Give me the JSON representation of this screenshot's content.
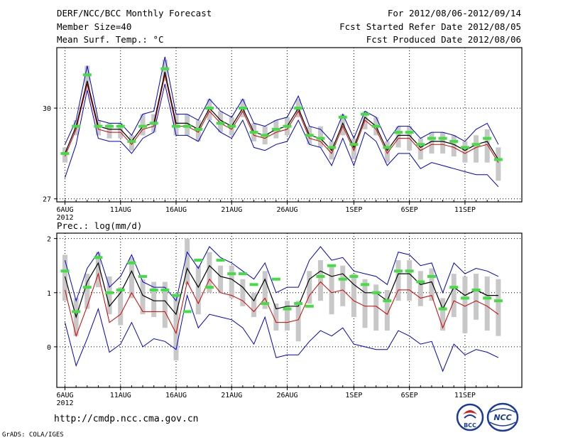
{
  "header": {
    "title": "DERF/NCC/BCC Monthly Forecast",
    "member_size": "Member Size=40",
    "variable": "Mean Surf. Temp.: °C",
    "period": "For 2012/08/06-2012/09/14",
    "fcst_started": "Fcst Started Refer Date 2012/08/05",
    "fcst_produced": "Fcst Produced Date 2012/08/06"
  },
  "footer": {
    "url": "http://cmdp.ncc.cma.gov.cn",
    "credit": "GrADS: COLA/IGES",
    "logo_bcc": "BCC",
    "logo_ncc": "NCC"
  },
  "colors": {
    "box": "#c8c8c8",
    "ensemble_mean": "#000000",
    "red_line": "#cc0000",
    "blue_line": "#0000cc",
    "green_marker": "#44dd44",
    "grid": "#000000"
  },
  "chart_data": [
    {
      "type": "line",
      "title": "Mean Surf. Temp.: °C",
      "x_tick_labels": [
        "6AUG",
        "11AUG",
        "16AUG",
        "21AUG",
        "26AUG",
        "1SEP",
        "6SEP",
        "11SEP"
      ],
      "year_label": "2012",
      "y_tick_labels": [
        "27",
        "30"
      ],
      "ylim": [
        26.9,
        32.0
      ],
      "x": [
        1,
        2,
        3,
        4,
        5,
        6,
        7,
        8,
        9,
        10,
        11,
        12,
        13,
        14,
        15,
        16,
        17,
        18,
        19,
        20,
        21,
        22,
        23,
        24,
        25,
        26,
        27,
        28,
        29,
        30,
        31,
        32,
        33,
        34,
        35,
        36,
        37,
        38,
        39,
        40
      ],
      "series": [
        {
          "name": "ensemble-mean",
          "values": [
            28.5,
            29.4,
            30.9,
            29.4,
            29.3,
            29.3,
            28.9,
            29.4,
            29.5,
            31.2,
            29.5,
            29.5,
            29.3,
            30.0,
            29.6,
            29.4,
            30.0,
            29.2,
            29.1,
            29.3,
            29.4,
            30.0,
            29.1,
            29.0,
            28.6,
            29.5,
            28.7,
            29.7,
            29.4,
            28.6,
            29.1,
            29.1,
            28.7,
            28.9,
            28.9,
            28.8,
            28.6,
            28.8,
            28.9,
            28.3
          ]
        },
        {
          "name": "red-line",
          "values": [
            28.4,
            29.3,
            30.8,
            29.3,
            29.2,
            29.2,
            28.8,
            29.3,
            29.4,
            31.1,
            29.4,
            29.4,
            29.2,
            29.9,
            29.5,
            29.3,
            29.9,
            29.1,
            29.0,
            29.2,
            29.3,
            29.9,
            29.0,
            28.9,
            28.5,
            29.4,
            28.6,
            29.6,
            29.3,
            28.5,
            29.0,
            29.0,
            28.6,
            28.8,
            28.8,
            28.7,
            28.5,
            28.7,
            28.8,
            28.2
          ]
        },
        {
          "name": "blue-upper",
          "values": [
            28.8,
            29.6,
            31.4,
            29.6,
            29.5,
            29.5,
            29.1,
            29.8,
            29.9,
            31.7,
            29.8,
            29.8,
            29.6,
            30.3,
            29.9,
            29.7,
            30.3,
            29.5,
            29.4,
            29.6,
            29.7,
            30.4,
            29.4,
            29.3,
            28.9,
            29.8,
            29.0,
            29.9,
            29.7,
            28.9,
            29.4,
            29.4,
            29.0,
            29.2,
            29.2,
            29.1,
            28.9,
            29.3,
            29.5,
            28.8
          ]
        },
        {
          "name": "blue-lower",
          "values": [
            27.7,
            28.8,
            30.6,
            29.0,
            28.9,
            28.9,
            28.5,
            29.0,
            29.2,
            30.8,
            29.1,
            29.1,
            28.9,
            29.6,
            29.2,
            29.0,
            29.6,
            28.7,
            28.6,
            28.8,
            28.9,
            29.6,
            28.8,
            28.7,
            28.1,
            29.0,
            28.1,
            29.2,
            28.9,
            28.1,
            28.5,
            28.5,
            28.0,
            28.2,
            28.1,
            28.0,
            27.9,
            27.8,
            27.8,
            27.4
          ]
        },
        {
          "name": "box-top",
          "values": [
            28.7,
            29.6,
            31.4,
            29.6,
            29.5,
            29.5,
            29.1,
            29.8,
            29.8,
            31.6,
            29.8,
            29.8,
            29.6,
            30.3,
            29.9,
            29.7,
            30.3,
            29.5,
            29.4,
            29.6,
            29.7,
            30.3,
            29.4,
            29.4,
            28.9,
            29.8,
            29.0,
            29.9,
            29.7,
            28.9,
            29.4,
            29.4,
            29.0,
            29.2,
            29.2,
            29.1,
            28.9,
            29.1,
            29.3,
            28.7
          ]
        },
        {
          "name": "box-bottom",
          "values": [
            28.2,
            29.1,
            30.6,
            29.1,
            29.0,
            29.0,
            28.6,
            29.1,
            29.2,
            30.9,
            29.1,
            29.1,
            28.9,
            29.6,
            29.2,
            29.1,
            29.7,
            28.9,
            28.8,
            29.0,
            29.1,
            29.7,
            28.8,
            28.7,
            28.3,
            29.1,
            28.3,
            29.3,
            29.1,
            28.2,
            28.7,
            28.6,
            28.3,
            28.5,
            28.5,
            28.4,
            28.2,
            28.2,
            28.2,
            27.6
          ]
        },
        {
          "name": "green-marker",
          "values": [
            28.5,
            29.4,
            31.1,
            29.4,
            29.4,
            29.4,
            28.9,
            29.4,
            29.5,
            31.3,
            29.4,
            29.4,
            29.3,
            30.0,
            29.5,
            29.4,
            30.0,
            29.2,
            29.1,
            29.3,
            29.4,
            30.0,
            29.1,
            29.0,
            28.7,
            29.7,
            28.8,
            29.8,
            29.4,
            28.7,
            29.2,
            29.2,
            28.8,
            29.0,
            29.0,
            28.9,
            28.7,
            28.8,
            29.0,
            28.3
          ]
        }
      ]
    },
    {
      "type": "line",
      "title": "Prec.: log(mm/d)",
      "x_tick_labels": [
        "6AUG",
        "11AUG",
        "16AUG",
        "21AUG",
        "26AUG",
        "1SEP",
        "6SEP",
        "11SEP"
      ],
      "year_label": "2012",
      "y_tick_labels": [
        "0",
        "1",
        "2"
      ],
      "ylim": [
        -0.75,
        2.1
      ],
      "x": [
        1,
        2,
        3,
        4,
        5,
        6,
        7,
        8,
        9,
        10,
        11,
        12,
        13,
        14,
        15,
        16,
        17,
        18,
        19,
        20,
        21,
        22,
        23,
        24,
        25,
        26,
        27,
        28,
        29,
        30,
        31,
        32,
        33,
        34,
        35,
        36,
        37,
        38,
        39,
        40
      ],
      "series": [
        {
          "name": "ensemble-mean",
          "values": [
            1.3,
            0.55,
            1.2,
            1.55,
            0.75,
            1.0,
            1.4,
            0.95,
            0.85,
            0.85,
            0.6,
            1.45,
            1.1,
            1.5,
            1.3,
            1.25,
            1.1,
            0.85,
            1.25,
            0.7,
            0.75,
            0.75,
            1.25,
            1.4,
            1.3,
            1.35,
            1.15,
            1.0,
            1.0,
            0.85,
            1.35,
            1.35,
            1.15,
            1.2,
            0.7,
            1.1,
            0.95,
            1.05,
            0.95,
            0.95
          ]
        },
        {
          "name": "red-line",
          "values": [
            1.05,
            0.2,
            0.75,
            1.35,
            0.45,
            0.6,
            1.0,
            0.65,
            0.65,
            0.65,
            0.25,
            1.2,
            0.8,
            1.25,
            1.0,
            0.95,
            0.85,
            0.65,
            0.9,
            0.45,
            0.45,
            0.5,
            0.95,
            1.2,
            1.0,
            1.05,
            0.85,
            0.75,
            0.75,
            0.6,
            1.05,
            1.05,
            0.9,
            0.95,
            0.35,
            0.85,
            0.75,
            0.85,
            0.75,
            0.6
          ]
        },
        {
          "name": "blue-upper",
          "values": [
            1.6,
            0.85,
            1.45,
            1.75,
            1.1,
            1.3,
            1.7,
            1.2,
            1.1,
            1.1,
            0.85,
            1.75,
            1.45,
            1.85,
            1.65,
            1.55,
            1.4,
            1.25,
            1.55,
            1.0,
            1.1,
            1.1,
            1.6,
            1.85,
            1.6,
            1.65,
            1.4,
            1.35,
            1.3,
            1.15,
            1.75,
            1.7,
            1.5,
            1.55,
            1.0,
            1.55,
            1.35,
            1.45,
            1.4,
            1.3
          ]
        },
        {
          "name": "blue-lower",
          "values": [
            0.45,
            -0.35,
            0.15,
            0.7,
            -0.1,
            0.05,
            0.45,
            0.0,
            0.15,
            0.1,
            -0.05,
            0.95,
            0.35,
            0.6,
            0.55,
            0.5,
            0.35,
            0.05,
            0.55,
            -0.2,
            -0.15,
            -0.15,
            0.1,
            0.3,
            0.2,
            0.35,
            0.05,
            0.0,
            -0.05,
            -0.05,
            0.3,
            0.2,
            0.05,
            0.1,
            -0.45,
            0.05,
            -0.15,
            -0.05,
            -0.1,
            -0.2
          ]
        },
        {
          "name": "box-top",
          "values": [
            1.7,
            0.9,
            1.35,
            1.75,
            1.3,
            1.1,
            1.65,
            1.25,
            1.2,
            1.2,
            0.95,
            2.0,
            1.5,
            1.75,
            1.5,
            1.5,
            1.25,
            1.0,
            1.4,
            0.8,
            0.85,
            0.85,
            1.4,
            1.6,
            1.5,
            1.5,
            1.35,
            1.25,
            1.15,
            1.05,
            1.6,
            1.6,
            1.4,
            1.45,
            0.9,
            1.35,
            1.3,
            1.35,
            1.3,
            1.25
          ]
        },
        {
          "name": "box-bottom",
          "values": [
            0.85,
            0.2,
            0.7,
            1.1,
            0.6,
            0.4,
            0.9,
            0.6,
            0.55,
            0.35,
            -0.25,
            1.15,
            0.6,
            1.0,
            1.0,
            0.9,
            0.75,
            0.55,
            0.7,
            0.3,
            0.3,
            0.1,
            0.8,
            0.85,
            0.6,
            0.75,
            0.55,
            0.35,
            0.3,
            0.3,
            0.85,
            0.85,
            0.75,
            0.85,
            0.3,
            0.55,
            0.25,
            0.5,
            0.3,
            0.2
          ]
        },
        {
          "name": "green-marker",
          "values": [
            1.4,
            0.65,
            1.1,
            1.65,
            1.0,
            1.05,
            1.55,
            1.3,
            1.05,
            1.05,
            0.95,
            0.65,
            1.6,
            1.1,
            1.6,
            1.35,
            1.35,
            1.15,
            0.8,
            1.25,
            0.7,
            0.8,
            0.75,
            1.3,
            1.5,
            1.25,
            1.3,
            1.15,
            1.0,
            0.85,
            1.4,
            1.4,
            1.2,
            1.3,
            0.7,
            1.1,
            0.9,
            1.05,
            0.9,
            0.85
          ]
        }
      ]
    }
  ]
}
